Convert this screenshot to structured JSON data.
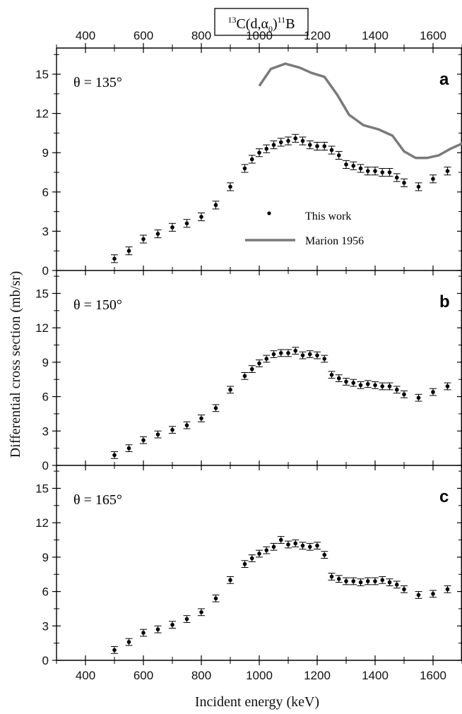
{
  "chart_data": {
    "type": "scatter",
    "title": {
      "pre_sup": "13",
      "main": "C(d,α",
      "sub": "0",
      "close": ")",
      "post_sup": "11",
      "tail": "B"
    },
    "xlabel": "Incident energy (keV)",
    "ylabel": "Differential cross section (mb/sr)",
    "xlim": [
      300,
      1700
    ],
    "ylim": [
      0,
      17
    ],
    "x_ticks": [
      "400",
      "600",
      "800",
      "1000",
      "1200",
      "1400",
      "1600"
    ],
    "y_ticks": [
      "0",
      "3",
      "6",
      "9",
      "12",
      "15"
    ],
    "legend": {
      "placement": "center-right of panel a",
      "points_label": "This work",
      "line_label": "Marion 1956"
    },
    "colors": {
      "points": "#000000",
      "marion_line": "#7a7a7a",
      "axes": "#000000"
    },
    "panels": [
      {
        "letter": "a",
        "angle": "θ = 135°",
        "series": [
          {
            "name": "This work",
            "points": [
              [
                500,
                0.9
              ],
              [
                550,
                1.5
              ],
              [
                600,
                2.4
              ],
              [
                650,
                2.8
              ],
              [
                700,
                3.3
              ],
              [
                750,
                3.6
              ],
              [
                800,
                4.1
              ],
              [
                850,
                5.0
              ],
              [
                900,
                6.4
              ],
              [
                950,
                7.8
              ],
              [
                975,
                8.5
              ],
              [
                1000,
                9.0
              ],
              [
                1025,
                9.3
              ],
              [
                1050,
                9.6
              ],
              [
                1075,
                9.8
              ],
              [
                1100,
                9.9
              ],
              [
                1125,
                10.1
              ],
              [
                1150,
                9.9
              ],
              [
                1175,
                9.6
              ],
              [
                1200,
                9.5
              ],
              [
                1225,
                9.5
              ],
              [
                1250,
                9.2
              ],
              [
                1275,
                8.8
              ],
              [
                1300,
                8.1
              ],
              [
                1325,
                8.0
              ],
              [
                1350,
                7.8
              ],
              [
                1375,
                7.6
              ],
              [
                1400,
                7.6
              ],
              [
                1425,
                7.5
              ],
              [
                1450,
                7.5
              ],
              [
                1475,
                7.1
              ],
              [
                1500,
                6.7
              ],
              [
                1550,
                6.4
              ],
              [
                1600,
                7.0
              ],
              [
                1650,
                7.6
              ]
            ],
            "error": 0.3
          },
          {
            "name": "Marion 1956",
            "line": [
              [
                1000,
                14.1
              ],
              [
                1040,
                15.4
              ],
              [
                1090,
                15.8
              ],
              [
                1140,
                15.5
              ],
              [
                1180,
                15.1
              ],
              [
                1225,
                14.8
              ],
              [
                1270,
                13.4
              ],
              [
                1310,
                11.9
              ],
              [
                1360,
                11.1
              ],
              [
                1410,
                10.8
              ],
              [
                1460,
                10.3
              ],
              [
                1500,
                9.1
              ],
              [
                1540,
                8.6
              ],
              [
                1580,
                8.6
              ],
              [
                1620,
                8.8
              ],
              [
                1660,
                9.3
              ],
              [
                1700,
                9.7
              ]
            ]
          }
        ]
      },
      {
        "letter": "b",
        "angle": "θ = 150°",
        "series": [
          {
            "name": "This work",
            "points": [
              [
                500,
                0.9
              ],
              [
                550,
                1.5
              ],
              [
                600,
                2.2
              ],
              [
                650,
                2.7
              ],
              [
                700,
                3.1
              ],
              [
                750,
                3.5
              ],
              [
                800,
                4.1
              ],
              [
                850,
                5.0
              ],
              [
                900,
                6.6
              ],
              [
                950,
                7.8
              ],
              [
                975,
                8.4
              ],
              [
                1000,
                8.9
              ],
              [
                1025,
                9.3
              ],
              [
                1050,
                9.7
              ],
              [
                1075,
                9.8
              ],
              [
                1100,
                9.8
              ],
              [
                1125,
                10.0
              ],
              [
                1150,
                9.6
              ],
              [
                1175,
                9.7
              ],
              [
                1200,
                9.6
              ],
              [
                1225,
                9.3
              ],
              [
                1250,
                7.9
              ],
              [
                1275,
                7.6
              ],
              [
                1300,
                7.3
              ],
              [
                1325,
                7.2
              ],
              [
                1350,
                7.0
              ],
              [
                1375,
                7.1
              ],
              [
                1400,
                7.0
              ],
              [
                1425,
                6.9
              ],
              [
                1450,
                6.9
              ],
              [
                1475,
                6.6
              ],
              [
                1500,
                6.2
              ],
              [
                1550,
                5.9
              ],
              [
                1600,
                6.4
              ],
              [
                1650,
                6.9
              ]
            ],
            "error": 0.3
          }
        ]
      },
      {
        "letter": "c",
        "angle": "θ = 165°",
        "series": [
          {
            "name": "This work",
            "points": [
              [
                500,
                0.9
              ],
              [
                550,
                1.6
              ],
              [
                600,
                2.4
              ],
              [
                650,
                2.7
              ],
              [
                700,
                3.1
              ],
              [
                750,
                3.6
              ],
              [
                800,
                4.2
              ],
              [
                850,
                5.4
              ],
              [
                900,
                7.0
              ],
              [
                950,
                8.4
              ],
              [
                975,
                8.9
              ],
              [
                1000,
                9.3
              ],
              [
                1025,
                9.6
              ],
              [
                1050,
                9.9
              ],
              [
                1075,
                10.5
              ],
              [
                1100,
                10.1
              ],
              [
                1125,
                10.2
              ],
              [
                1150,
                10.0
              ],
              [
                1175,
                9.9
              ],
              [
                1200,
                10.0
              ],
              [
                1225,
                9.2
              ],
              [
                1250,
                7.3
              ],
              [
                1275,
                7.1
              ],
              [
                1300,
                6.9
              ],
              [
                1325,
                6.9
              ],
              [
                1350,
                6.8
              ],
              [
                1375,
                6.9
              ],
              [
                1400,
                6.9
              ],
              [
                1425,
                7.0
              ],
              [
                1450,
                6.8
              ],
              [
                1475,
                6.6
              ],
              [
                1500,
                6.2
              ],
              [
                1550,
                5.7
              ],
              [
                1600,
                5.8
              ],
              [
                1650,
                6.2
              ]
            ],
            "error": 0.3
          }
        ]
      }
    ]
  }
}
